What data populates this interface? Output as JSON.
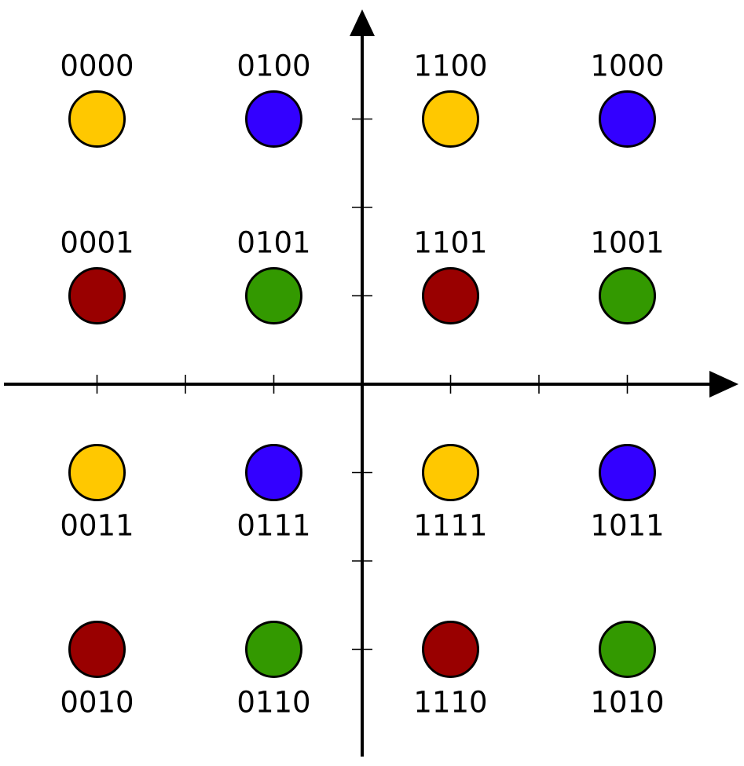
{
  "colors": {
    "yellow": "#ffc800",
    "blue": "#3300ff",
    "red": "#990000",
    "green": "#339900"
  },
  "axes": {
    "x_ticks": [
      -3,
      -2,
      -1,
      1,
      2,
      3
    ],
    "y_ticks": [
      -3,
      -2,
      -1,
      1,
      2,
      3
    ]
  },
  "points": [
    {
      "x": -3,
      "y": 3,
      "label": "0000",
      "color": "yellow",
      "label_pos": "above"
    },
    {
      "x": -1,
      "y": 3,
      "label": "0100",
      "color": "blue",
      "label_pos": "above"
    },
    {
      "x": 1,
      "y": 3,
      "label": "1100",
      "color": "yellow",
      "label_pos": "above"
    },
    {
      "x": 3,
      "y": 3,
      "label": "1000",
      "color": "blue",
      "label_pos": "above"
    },
    {
      "x": -3,
      "y": 1,
      "label": "0001",
      "color": "red",
      "label_pos": "above"
    },
    {
      "x": -1,
      "y": 1,
      "label": "0101",
      "color": "green",
      "label_pos": "above"
    },
    {
      "x": 1,
      "y": 1,
      "label": "1101",
      "color": "red",
      "label_pos": "above"
    },
    {
      "x": 3,
      "y": 1,
      "label": "1001",
      "color": "green",
      "label_pos": "above"
    },
    {
      "x": -3,
      "y": -1,
      "label": "0011",
      "color": "yellow",
      "label_pos": "below"
    },
    {
      "x": -1,
      "y": -1,
      "label": "0111",
      "color": "blue",
      "label_pos": "below"
    },
    {
      "x": 1,
      "y": -1,
      "label": "1111",
      "color": "yellow",
      "label_pos": "below"
    },
    {
      "x": 3,
      "y": -1,
      "label": "1011",
      "color": "blue",
      "label_pos": "below"
    },
    {
      "x": -3,
      "y": -3,
      "label": "0010",
      "color": "red",
      "label_pos": "below"
    },
    {
      "x": -1,
      "y": -3,
      "label": "0110",
      "color": "green",
      "label_pos": "below"
    },
    {
      "x": 1,
      "y": -3,
      "label": "1110",
      "color": "red",
      "label_pos": "below"
    },
    {
      "x": 3,
      "y": -3,
      "label": "1010",
      "color": "green",
      "label_pos": "below"
    }
  ]
}
